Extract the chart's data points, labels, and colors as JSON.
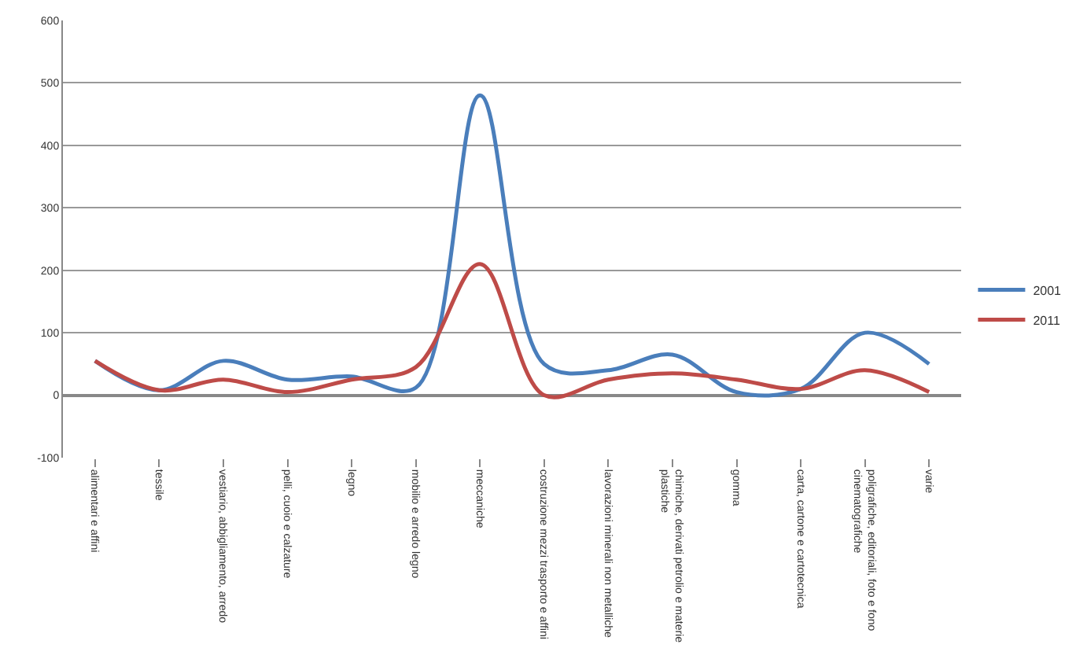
{
  "chart_data": {
    "type": "line",
    "categories": [
      "alimentari e affini",
      "tessile",
      "vestiario, abbigliamento, arredo",
      "pelli, cuoio e calzature",
      "legno",
      "mobilio e arredo legno",
      "meccaniche",
      "costruzione mezzi trasporto e affini",
      "lavorazioni minerali non metalliche",
      "chimiche, derivati petrolio e materie plastiche",
      "gomma",
      "carta, cartone e cartotecnica",
      "poligrafiche, editoriali, foto e fono cinematografiche",
      "varie"
    ],
    "series": [
      {
        "name": "2001",
        "color": "#4a7ebb",
        "values": [
          55,
          8,
          55,
          25,
          30,
          12,
          480,
          50,
          40,
          65,
          5,
          10,
          100,
          50
        ]
      },
      {
        "name": "2011",
        "color": "#be4b48",
        "values": [
          55,
          8,
          25,
          5,
          25,
          45,
          210,
          0,
          25,
          35,
          25,
          10,
          40,
          5
        ]
      }
    ],
    "ylim": [
      -100,
      600
    ],
    "yticks": [
      -100,
      0,
      100,
      200,
      300,
      400,
      500,
      600
    ],
    "grid": "y",
    "legend": "right",
    "marker": "none",
    "line_style": "solid"
  }
}
